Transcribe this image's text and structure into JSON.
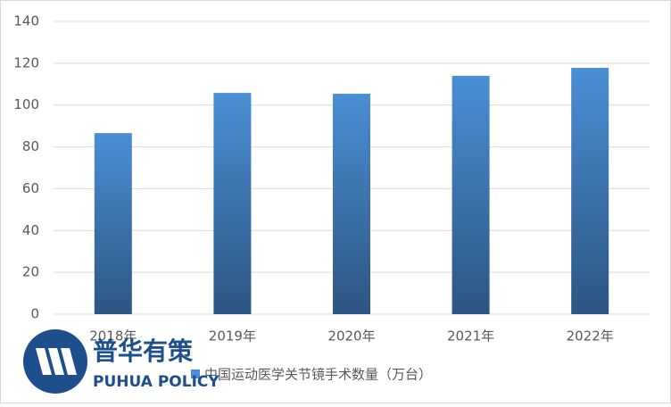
{
  "chart_data": {
    "type": "bar",
    "categories": [
      "2018年",
      "2019年",
      "2020年",
      "2021年",
      "2022年"
    ],
    "series": [
      {
        "name": "中国运动医学关节镜手术数量（万台）",
        "color": "#4a8fd4",
        "values": [
          86.6,
          105.8,
          105.4,
          114,
          117.8
        ]
      }
    ],
    "gradient_end": "#2c5582",
    "ylim": [
      0,
      140
    ],
    "yticks": [
      0,
      20,
      40,
      60,
      80,
      100,
      120,
      140
    ],
    "grid": true,
    "legend": "bottom",
    "logo": {
      "name": "普华有策",
      "subtitle": "PUHUA POLICY"
    }
  }
}
